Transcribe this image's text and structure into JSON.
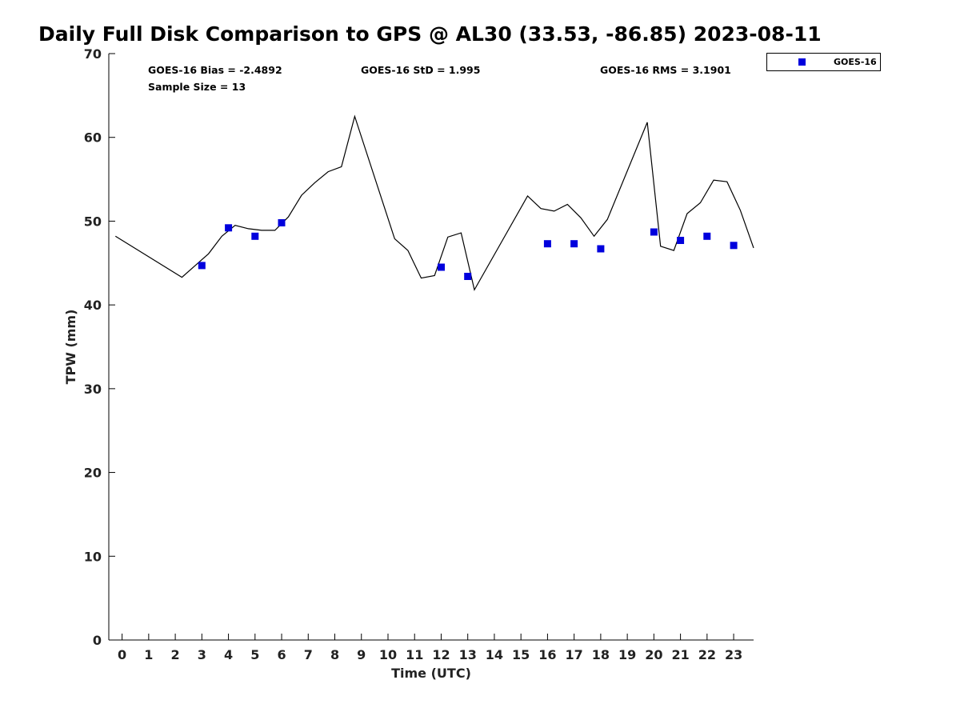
{
  "chart_data": {
    "type": "line",
    "title": "Daily Full Disk Comparison to GPS @ AL30 (33.53, -86.85) 2023-08-11",
    "xlabel": "Time (UTC)",
    "ylabel": "TPW (mm)",
    "xlim": [
      -0.5,
      23.75
    ],
    "ylim": [
      0,
      70
    ],
    "xticks": [
      0,
      1,
      2,
      3,
      4,
      5,
      6,
      7,
      8,
      9,
      10,
      11,
      12,
      13,
      14,
      15,
      16,
      17,
      18,
      19,
      20,
      21,
      22,
      23
    ],
    "yticks": [
      0,
      10,
      20,
      30,
      40,
      50,
      60,
      70
    ],
    "grid": false,
    "legend": {
      "position": "top-right",
      "entries": [
        "GOES-16"
      ]
    },
    "stats": {
      "bias": "GOES-16 Bias = -2.4892",
      "std": "GOES-16 StD = 1.995",
      "rms": "GOES-16 RMS = 3.1901",
      "sample": "Sample Size = 13"
    },
    "series": [
      {
        "style": "line",
        "color": "#000000",
        "x": [
          -0.25,
          2.25,
          2.75,
          3.25,
          3.75,
          4.25,
          4.75,
          5.25,
          5.75,
          6.25,
          6.75,
          7.25,
          7.75,
          8.25,
          8.75,
          10.25,
          10.75,
          11.25,
          11.75,
          12.25,
          12.75,
          13.25,
          15.25,
          15.75,
          16.25,
          16.75,
          17.25,
          17.75,
          18.25,
          19.75,
          20.25,
          20.75,
          21.25,
          21.75,
          22.25,
          22.75,
          23.25,
          23.75
        ],
        "y": [
          48.2,
          43.3,
          44.7,
          46.1,
          48.2,
          49.5,
          49.1,
          48.9,
          48.9,
          50.5,
          53.1,
          54.6,
          55.9,
          56.5,
          62.5,
          47.9,
          46.5,
          43.2,
          43.5,
          48.1,
          48.6,
          41.8,
          53.0,
          51.5,
          51.2,
          52.0,
          50.4,
          48.2,
          50.2,
          61.8,
          47.0,
          46.5,
          50.9,
          52.2,
          54.9,
          54.7,
          51.3,
          46.8
        ]
      },
      {
        "name": "GOES-16",
        "style": "marker",
        "color": "#0000dd",
        "x": [
          3,
          4,
          5,
          6,
          12,
          13,
          16,
          17,
          18,
          20,
          21,
          22,
          23
        ],
        "y": [
          44.7,
          49.2,
          48.2,
          49.8,
          44.5,
          43.4,
          47.3,
          47.3,
          46.7,
          48.7,
          47.7,
          48.2,
          47.1
        ]
      }
    ]
  }
}
